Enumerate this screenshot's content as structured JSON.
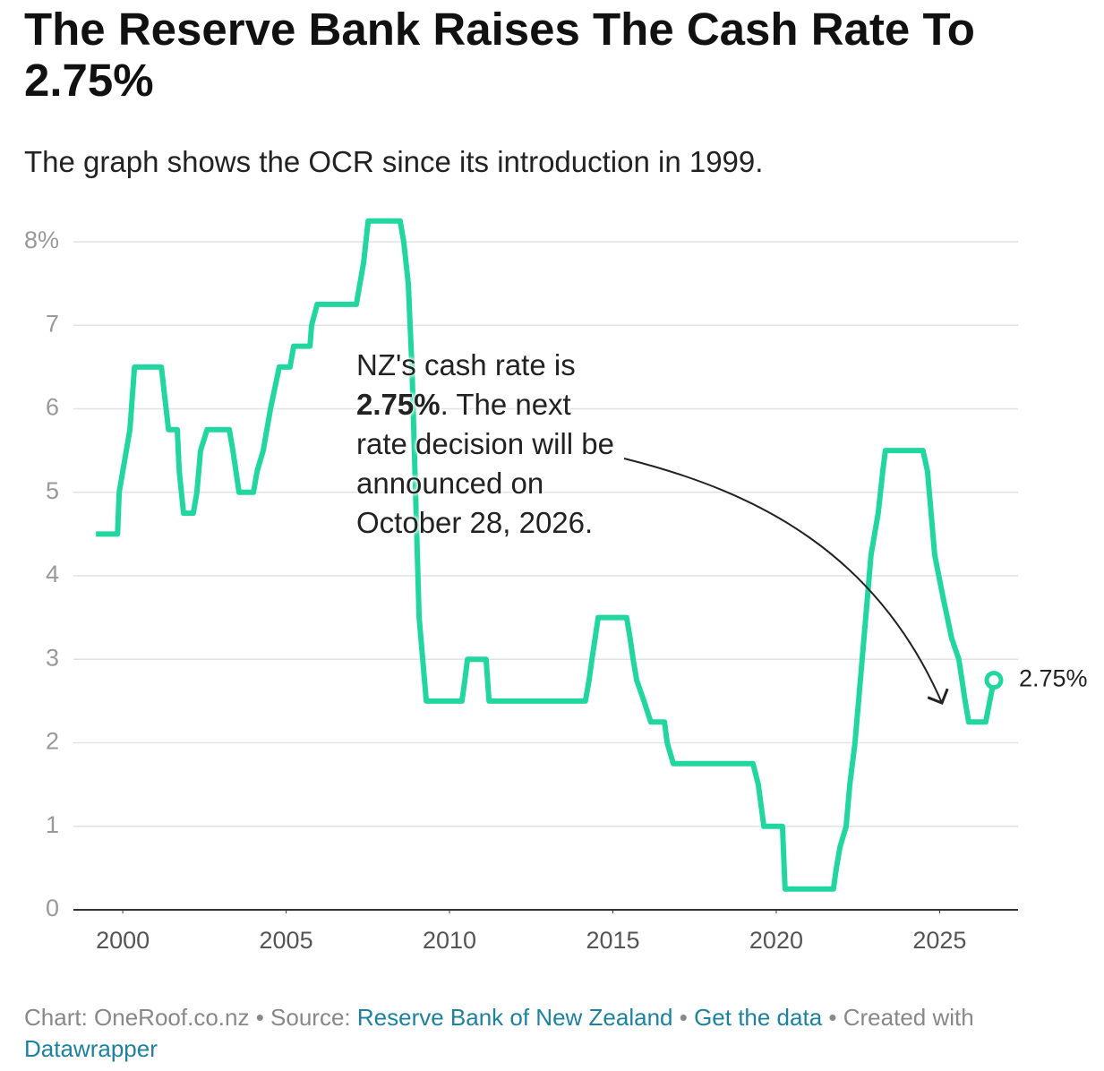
{
  "chart_data": {
    "type": "line",
    "title": "The Reserve Bank Raises The Cash Rate To 2.75%",
    "subtitle": "The graph shows the OCR since its introduction in 1999.",
    "x": [
      1999.18,
      1999.84,
      1999.89,
      2000.0,
      2000.22,
      2000.36,
      2001.18,
      2001.4,
      2001.67,
      2001.73,
      2001.86,
      2002.16,
      2002.27,
      2002.38,
      2002.58,
      2003.26,
      2003.37,
      2003.56,
      2004.0,
      2004.11,
      2004.3,
      2004.52,
      2004.79,
      2005.12,
      2005.23,
      2005.73,
      2005.78,
      2005.95,
      2007.15,
      2007.26,
      2007.37,
      2007.51,
      2008.49,
      2008.6,
      2008.74,
      2008.85,
      2008.96,
      2009.07,
      2009.18,
      2009.29,
      2010.38,
      2010.47,
      2010.55,
      2011.12,
      2011.21,
      2014.16,
      2014.27,
      2014.36,
      2014.55,
      2015.42,
      2015.53,
      2015.62,
      2015.73,
      2015.95,
      2016.16,
      2016.58,
      2016.66,
      2016.85,
      2019.29,
      2019.45,
      2019.62,
      2020.19,
      2020.27,
      2021.75,
      2021.84,
      2021.95,
      2022.14,
      2022.25,
      2022.41,
      2022.63,
      2022.74,
      2022.9,
      2023.12,
      2023.26,
      2023.34,
      2024.49,
      2024.63,
      2024.85,
      2025.1,
      2025.37,
      2025.59,
      2025.78,
      2025.89,
      2026.41,
      2026.66
    ],
    "series": [
      {
        "color": "#22d6a0",
        "values": [
          4.5,
          4.5,
          5.0,
          5.25,
          5.75,
          6.5,
          6.5,
          5.75,
          5.75,
          5.25,
          4.75,
          4.75,
          5.0,
          5.5,
          5.75,
          5.75,
          5.5,
          5.0,
          5.0,
          5.25,
          5.5,
          6.0,
          6.5,
          6.5,
          6.75,
          6.75,
          7.0,
          7.25,
          7.25,
          7.5,
          7.75,
          8.25,
          8.25,
          8.0,
          7.5,
          6.5,
          5.0,
          3.5,
          3.0,
          2.5,
          2.5,
          2.75,
          3.0,
          3.0,
          2.5,
          2.5,
          2.75,
          3.0,
          3.5,
          3.5,
          3.25,
          3.0,
          2.75,
          2.5,
          2.25,
          2.25,
          2.0,
          1.75,
          1.75,
          1.5,
          1.0,
          1.0,
          0.25,
          0.25,
          0.5,
          0.75,
          1.0,
          1.5,
          2.0,
          3.0,
          3.5,
          4.25,
          4.75,
          5.25,
          5.5,
          5.5,
          5.25,
          4.25,
          3.75,
          3.25,
          3.0,
          2.5,
          2.25,
          2.25,
          2.75
        ]
      }
    ],
    "end_label": {
      "value": 2.75,
      "label": "2.75%"
    },
    "xlim": [
      1998.49,
      2027.4
    ],
    "xticks": [
      2000,
      2005,
      2010,
      2015,
      2020,
      2025
    ],
    "ylim": [
      0,
      8
    ],
    "yticks": [
      0,
      1,
      2,
      3,
      4,
      5,
      6,
      7,
      {
        "value": 8,
        "label": "8%"
      }
    ],
    "grid": true,
    "annotation": [
      "NZ's cash rate is ",
      "2.75%",
      ". The next rate decision will be announced on October 28, 2026."
    ],
    "footer": {
      "chart": "Chart: OneRoof.co.nz",
      "source_label": "Source:",
      "source": "Reserve Bank of New Zealand",
      "get_data": "Get the data",
      "created": "Created with",
      "tool": "Datawrapper"
    }
  }
}
